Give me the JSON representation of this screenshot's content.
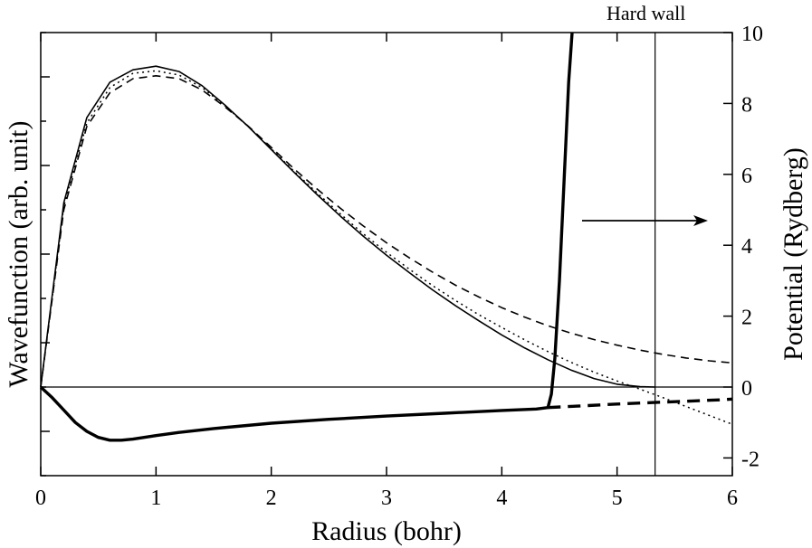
{
  "chart_data": {
    "type": "line",
    "xlabel": "Radius (bohr)",
    "ylabel_left": "Wavefunction (arb. unit)",
    "ylabel_right": "Potential (Rydberg)",
    "xlim": [
      0,
      6
    ],
    "ylim_right": [
      -2.5,
      10
    ],
    "x_ticks": [
      0,
      1,
      2,
      3,
      4,
      5,
      6
    ],
    "y_ticks_right": [
      -2,
      0,
      2,
      4,
      6,
      8,
      10
    ],
    "x_tick_labels": [
      "0",
      "1",
      "2",
      "3",
      "4",
      "5",
      "6"
    ],
    "y_tick_labels_right": [
      "-2",
      "0",
      "2",
      "4",
      "6",
      "8",
      "10"
    ],
    "left_axis_values_labeled": false,
    "grid": false,
    "annotations": [
      {
        "text": "Hard wall",
        "x": 5.33
      }
    ],
    "wavefunction_series_note": "left axis has unlabeled ticks; wavefunction values in arbitrary units (scaled to right-axis units for plotting)",
    "series": [
      {
        "style": "solid-thin",
        "axis": "left",
        "x": [
          0,
          0.2,
          0.4,
          0.6,
          0.8,
          1.0,
          1.2,
          1.4,
          1.6,
          1.8,
          2.0,
          2.2,
          2.4,
          2.6,
          2.8,
          3.0,
          3.2,
          3.4,
          3.6,
          3.8,
          4.0,
          4.2,
          4.4,
          4.6,
          4.8,
          5.0,
          5.2,
          5.33
        ],
        "y": [
          0,
          5.2,
          7.6,
          8.6,
          8.95,
          9.05,
          8.9,
          8.5,
          7.95,
          7.35,
          6.7,
          6.05,
          5.42,
          4.82,
          4.25,
          3.72,
          3.22,
          2.74,
          2.29,
          1.87,
          1.47,
          1.1,
          0.77,
          0.48,
          0.24,
          0.08,
          0.01,
          0
        ]
      },
      {
        "style": "dotted",
        "axis": "left",
        "x": [
          0,
          0.2,
          0.4,
          0.6,
          0.8,
          1.0,
          1.2,
          1.4,
          1.6,
          1.8,
          2.0,
          2.2,
          2.4,
          2.6,
          2.8,
          3.0,
          3.2,
          3.4,
          3.6,
          3.8,
          4.0,
          4.2,
          4.4,
          4.6,
          4.8,
          5.0,
          5.2,
          5.4,
          5.6,
          5.8,
          6.0
        ],
        "y": [
          0,
          5.1,
          7.45,
          8.45,
          8.85,
          8.92,
          8.8,
          8.45,
          7.93,
          7.35,
          6.72,
          6.08,
          5.47,
          4.88,
          4.32,
          3.8,
          3.32,
          2.86,
          2.44,
          2.04,
          1.68,
          1.33,
          1.0,
          0.7,
          0.42,
          0.17,
          -0.06,
          -0.3,
          -0.55,
          -0.8,
          -1.05
        ]
      },
      {
        "style": "dashed",
        "axis": "left",
        "x": [
          0,
          0.2,
          0.4,
          0.6,
          0.8,
          1.0,
          1.2,
          1.4,
          1.6,
          1.8,
          2.0,
          2.2,
          2.4,
          2.6,
          2.8,
          3.0,
          3.2,
          3.4,
          3.6,
          3.8,
          4.0,
          4.2,
          4.4,
          4.6,
          4.8,
          5.0,
          5.2,
          5.4,
          5.6,
          5.8,
          6.0
        ],
        "y": [
          0,
          5.0,
          7.35,
          8.3,
          8.7,
          8.78,
          8.7,
          8.38,
          7.9,
          7.36,
          6.76,
          6.15,
          5.58,
          5.04,
          4.54,
          4.07,
          3.64,
          3.24,
          2.87,
          2.54,
          2.24,
          1.97,
          1.73,
          1.52,
          1.34,
          1.18,
          1.04,
          0.92,
          0.82,
          0.74,
          0.68
        ]
      },
      {
        "style": "solid-thick",
        "axis": "right",
        "x": [
          0,
          0.1,
          0.2,
          0.3,
          0.4,
          0.5,
          0.6,
          0.7,
          0.8,
          1.0,
          1.2,
          1.5,
          2.0,
          2.5,
          3.0,
          3.5,
          4.0,
          4.3,
          4.4,
          4.43,
          4.46,
          4.5,
          4.54,
          4.58,
          4.61
        ],
        "y": [
          0,
          -0.3,
          -0.65,
          -1.0,
          -1.25,
          -1.42,
          -1.5,
          -1.5,
          -1.47,
          -1.37,
          -1.28,
          -1.17,
          -1.02,
          -0.91,
          -0.82,
          -0.74,
          -0.66,
          -0.62,
          -0.58,
          -0.2,
          0.8,
          3.0,
          5.8,
          8.6,
          10.0
        ]
      },
      {
        "style": "dashed-thick",
        "axis": "right",
        "x": [
          4.4,
          4.7,
          5.0,
          5.3,
          5.6,
          5.9,
          6.0
        ],
        "y": [
          -0.58,
          -0.53,
          -0.48,
          -0.44,
          -0.4,
          -0.36,
          -0.34
        ]
      }
    ]
  }
}
